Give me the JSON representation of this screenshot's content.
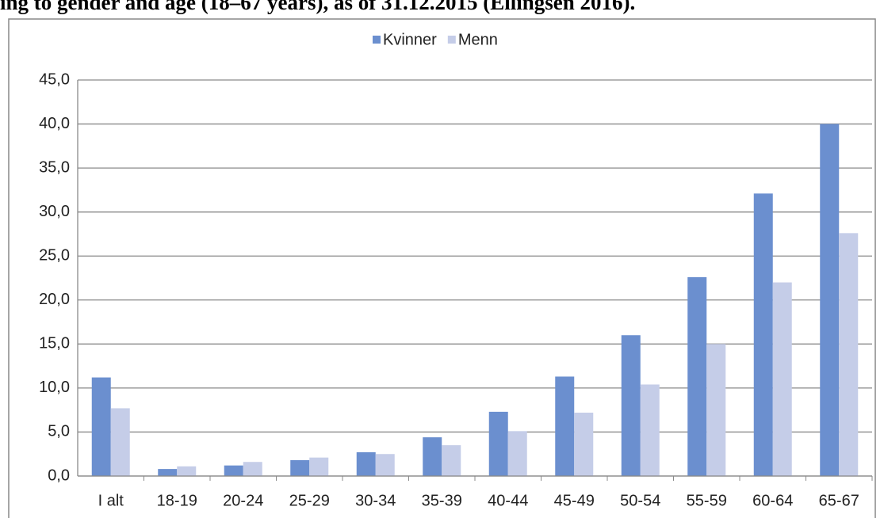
{
  "caption": "ing to gender and age (18–67 years), as of 31.12.2015 (Ellingsen 2016).",
  "chart_data": {
    "type": "bar",
    "categories": [
      "I alt",
      "18-19",
      "20-24",
      "25-29",
      "30-34",
      "35-39",
      "40-44",
      "45-49",
      "50-54",
      "55-59",
      "60-64",
      "65-67"
    ],
    "series": [
      {
        "name": "Kvinner",
        "color": "#6b8fcf",
        "values": [
          11.2,
          0.8,
          1.2,
          1.8,
          2.7,
          4.4,
          7.3,
          11.3,
          16.0,
          22.6,
          32.1,
          40.0
        ]
      },
      {
        "name": "Menn",
        "color": "#c5cde8",
        "values": [
          7.7,
          1.1,
          1.6,
          2.1,
          2.5,
          3.5,
          5.1,
          7.2,
          10.4,
          15.0,
          22.0,
          27.6
        ]
      }
    ],
    "ylim": [
      0,
      45
    ],
    "yticks": [
      {
        "value": 0,
        "label": "0,0"
      },
      {
        "value": 5,
        "label": "5,0"
      },
      {
        "value": 10,
        "label": "10,0"
      },
      {
        "value": 15,
        "label": "15,0"
      },
      {
        "value": 20,
        "label": "20,0"
      },
      {
        "value": 25,
        "label": "25,0"
      },
      {
        "value": 30,
        "label": "30,0"
      },
      {
        "value": 35,
        "label": "35,0"
      },
      {
        "value": 40,
        "label": "40,0"
      },
      {
        "value": 45,
        "label": "45,0"
      }
    ],
    "grid": true,
    "legend": "top"
  }
}
